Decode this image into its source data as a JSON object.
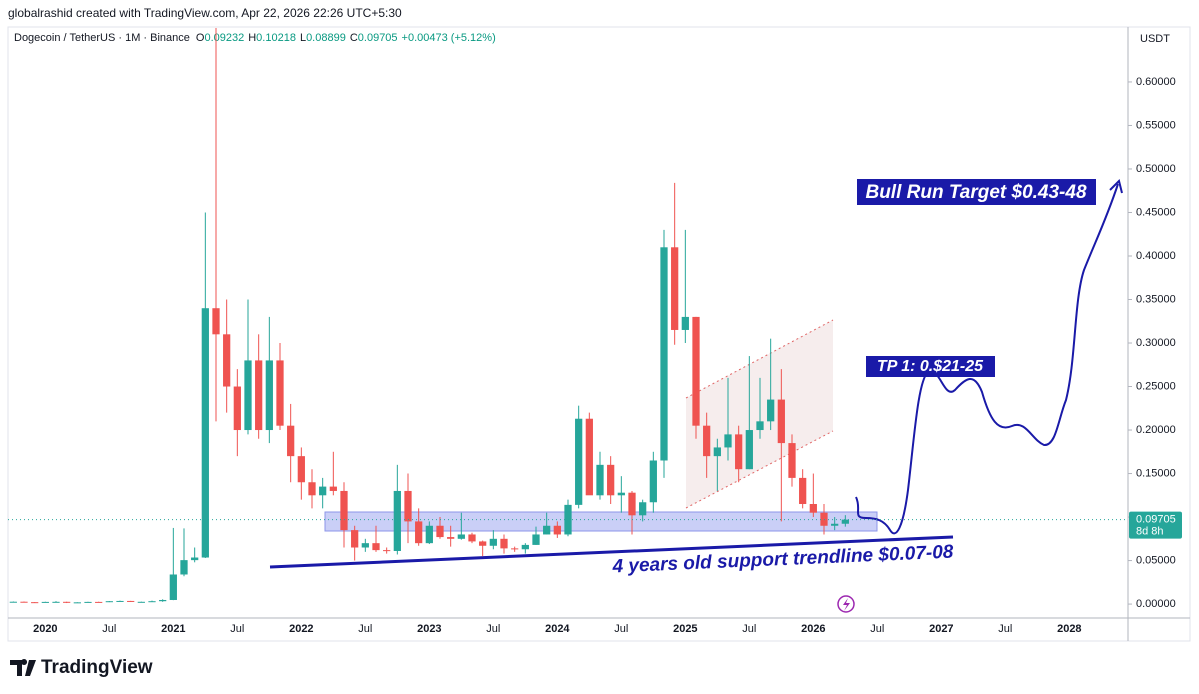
{
  "chart_data": {
    "type": "candlestick",
    "credit": "globalrashid created with TradingView.com, Apr 22, 2026 22:26 UTC+5:30",
    "symbol": "Dogecoin / TetherUS · 1M · Binance",
    "legend_labels": {
      "open": "O",
      "high": "H",
      "low": "L",
      "close": "C"
    },
    "change_label": "+0.00473 (+5.12%)",
    "y_axis_label": "USDT",
    "countdown": "8d 8h",
    "brand": "TradingView",
    "annotations": [
      "Bull Run Target $0.43-48",
      "TP 1: 0.$21-25",
      "4 years old support trendline $0.07-08"
    ],
    "up_color": "#26a69a",
    "down_color": "#ef5350",
    "grid": false,
    "categories": [
      null,
      null,
      null,
      "2020",
      null,
      null,
      null,
      null,
      null,
      "Jul",
      null,
      null,
      null,
      null,
      null,
      "2021",
      null,
      null,
      null,
      null,
      null,
      "Jul",
      null,
      null,
      null,
      null,
      null,
      "2022",
      null,
      null,
      null,
      null,
      null,
      "Jul",
      null,
      null,
      null,
      null,
      null,
      "2023",
      null,
      null,
      null,
      null,
      null,
      "Jul",
      null,
      null,
      null,
      null,
      null,
      "2024",
      null,
      null,
      null,
      null,
      null,
      "Jul",
      null,
      null,
      null,
      null,
      null,
      "2025",
      null,
      null,
      null,
      null,
      null,
      "Jul",
      null,
      null,
      null,
      null,
      null,
      "2026",
      null,
      null,
      null,
      null,
      null,
      "Jul",
      null,
      null,
      null,
      null,
      null,
      "2027",
      null,
      null,
      null,
      null,
      null,
      "Jul",
      null,
      null,
      null,
      null,
      null,
      "2028",
      null,
      null,
      null,
      null,
      null
    ],
    "open": [
      0.0024,
      0.0027,
      0.0022,
      0.002,
      0.0025,
      0.0026,
      0.0017,
      0.002,
      0.0025,
      0.0024,
      0.0033,
      0.0036,
      0.0026,
      0.0026,
      0.0033,
      0.0047,
      0.034,
      0.0505,
      0.0535,
      0.34,
      0.31,
      0.25,
      0.2,
      0.28,
      0.2,
      0.28,
      0.205,
      0.17,
      0.14,
      0.125,
      0.135,
      0.13,
      0.085,
      0.065,
      0.07,
      0.062,
      0.061,
      0.13,
      0.095,
      0.07,
      0.09,
      0.077,
      0.075,
      0.08,
      0.072,
      0.067,
      0.075,
      0.064,
      0.063,
      0.068,
      0.08,
      0.09,
      0.08,
      0.114,
      0.213,
      0.125,
      0.16,
      0.125,
      0.128,
      0.102,
      0.117,
      0.165,
      0.41,
      0.315,
      0.33,
      0.205,
      0.17,
      0.18,
      0.195,
      0.155,
      0.2,
      0.21,
      0.235,
      0.185,
      0.145,
      0.115,
      0.105,
      0.09,
      0.09232,
      null,
      null,
      null,
      null,
      null,
      null,
      null,
      null,
      null,
      null,
      null,
      null,
      null,
      null,
      null,
      null,
      null,
      null,
      null,
      null,
      null,
      null,
      null,
      null,
      null,
      null
    ],
    "high": [
      0.003,
      0.0029,
      0.0023,
      0.0027,
      0.0034,
      0.0027,
      0.0021,
      0.0027,
      0.0027,
      0.0035,
      0.004,
      0.0037,
      0.0028,
      0.004,
      0.0055,
      0.0875,
      0.087,
      0.065,
      0.45,
      0.74,
      0.35,
      0.27,
      0.35,
      0.31,
      0.33,
      0.3,
      0.23,
      0.18,
      0.155,
      0.145,
      0.175,
      0.14,
      0.09,
      0.075,
      0.09,
      0.065,
      0.16,
      0.15,
      0.11,
      0.095,
      0.1,
      0.09,
      0.105,
      0.082,
      0.073,
      0.085,
      0.08,
      0.066,
      0.07,
      0.089,
      0.105,
      0.095,
      0.12,
      0.228,
      0.22,
      0.175,
      0.17,
      0.147,
      0.13,
      0.12,
      0.175,
      0.43,
      0.484,
      0.43,
      0.33,
      0.22,
      0.19,
      0.26,
      0.205,
      0.285,
      0.26,
      0.305,
      0.27,
      0.195,
      0.155,
      0.15,
      0.115,
      0.1,
      0.10218,
      null,
      null,
      null,
      null,
      null,
      null,
      null,
      null,
      null,
      null,
      null,
      null,
      null,
      null,
      null,
      null,
      null,
      null,
      null,
      null,
      null,
      null,
      null,
      null,
      null,
      null
    ],
    "low": [
      0.0023,
      0.0021,
      0.0019,
      0.002,
      0.0024,
      0.0012,
      0.0016,
      0.002,
      0.0023,
      0.0023,
      0.003,
      0.0025,
      0.0024,
      0.0025,
      0.0026,
      0.0045,
      0.032,
      0.048,
      0.053,
      0.21,
      0.22,
      0.17,
      0.195,
      0.19,
      0.185,
      0.2,
      0.14,
      0.12,
      0.11,
      0.11,
      0.125,
      0.065,
      0.05,
      0.06,
      0.06,
      0.058,
      0.057,
      0.07,
      0.067,
      0.069,
      0.075,
      0.066,
      0.074,
      0.07,
      0.055,
      0.063,
      0.058,
      0.06,
      0.058,
      0.068,
      0.08,
      0.076,
      0.078,
      0.11,
      0.13,
      0.12,
      0.115,
      0.105,
      0.08,
      0.095,
      0.105,
      0.145,
      0.298,
      0.3,
      0.19,
      0.145,
      0.13,
      0.165,
      0.14,
      0.155,
      0.19,
      0.2,
      0.095,
      0.135,
      0.11,
      0.1,
      0.08,
      0.085,
      0.08899,
      null,
      null,
      null,
      null,
      null,
      null,
      null,
      null,
      null,
      null,
      null,
      null,
      null,
      null,
      null,
      null,
      null,
      null,
      null,
      null,
      null,
      null,
      null,
      null,
      null,
      null
    ],
    "close": [
      0.0027,
      0.0022,
      0.002,
      0.0025,
      0.0026,
      0.0017,
      0.002,
      0.0025,
      0.0024,
      0.0033,
      0.0036,
      0.0026,
      0.0026,
      0.0033,
      0.0047,
      0.034,
      0.0505,
      0.0535,
      0.34,
      0.31,
      0.25,
      0.2,
      0.28,
      0.2,
      0.28,
      0.205,
      0.17,
      0.14,
      0.125,
      0.135,
      0.13,
      0.085,
      0.065,
      0.07,
      0.062,
      0.061,
      0.13,
      0.095,
      0.07,
      0.09,
      0.077,
      0.075,
      0.08,
      0.072,
      0.067,
      0.075,
      0.064,
      0.063,
      0.068,
      0.08,
      0.09,
      0.08,
      0.114,
      0.213,
      0.125,
      0.16,
      0.125,
      0.128,
      0.102,
      0.117,
      0.165,
      0.41,
      0.315,
      0.33,
      0.205,
      0.17,
      0.18,
      0.195,
      0.155,
      0.2,
      0.21,
      0.235,
      0.185,
      0.145,
      0.115,
      0.105,
      0.09,
      0.0923,
      0.09705,
      null,
      null,
      null,
      null,
      null,
      null,
      null,
      null,
      null,
      null,
      null,
      null,
      null,
      null,
      null,
      null,
      null,
      null,
      null,
      null,
      null,
      null,
      null,
      null,
      null,
      null
    ],
    "ylim": [
      -0.016,
      0.662
    ],
    "yticks": [
      {
        "value": 0,
        "label": "0.00000"
      },
      {
        "value": 0.05,
        "label": "0.05000"
      },
      {
        "value": 0.1,
        "label": "0.10000"
      },
      {
        "value": 0.15,
        "label": "0.15000"
      },
      {
        "value": 0.2,
        "label": "0.20000"
      },
      {
        "value": 0.25,
        "label": "0.25000"
      },
      {
        "value": 0.3,
        "label": "0.30000"
      },
      {
        "value": 0.35,
        "label": "0.35000"
      },
      {
        "value": 0.4,
        "label": "0.40000"
      },
      {
        "value": 0.45,
        "label": "0.45000"
      },
      {
        "value": 0.5,
        "label": "0.50000"
      },
      {
        "value": 0.55,
        "label": "0.55000"
      },
      {
        "value": 0.6,
        "label": "0.60000"
      }
    ]
  }
}
